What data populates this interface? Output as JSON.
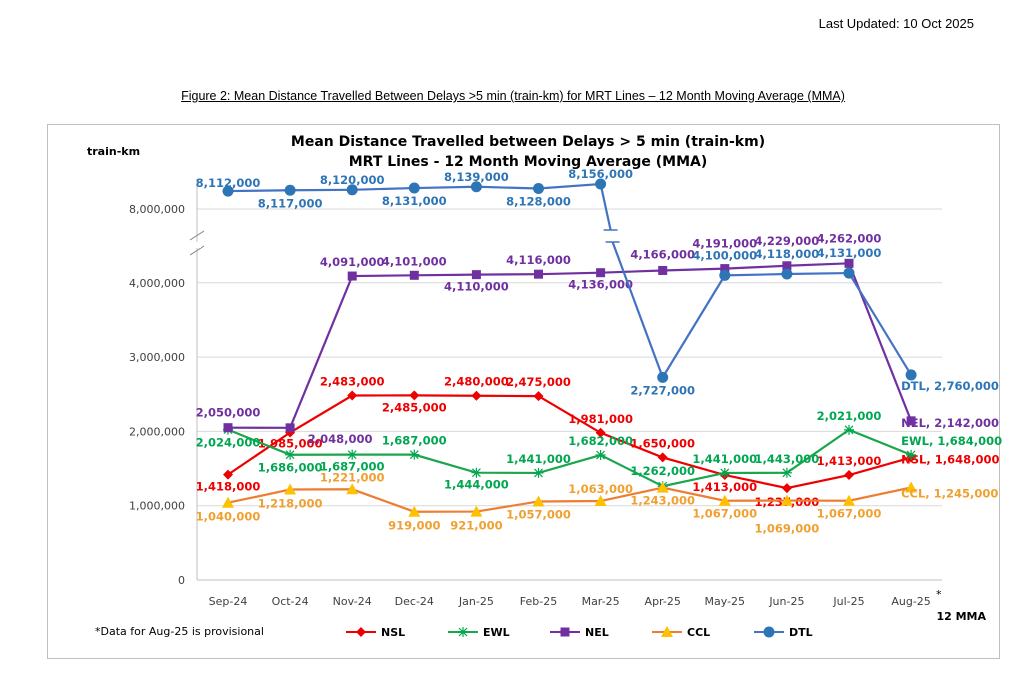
{
  "header": {
    "last_updated": "Last Updated: 10 Oct 2025",
    "figure_caption": "Figure 2: Mean Distance Travelled Between Delays >5 min (train-km) for MRT Lines – 12 Month Moving Average (MMA)"
  },
  "chart_data": {
    "type": "line",
    "title": "Mean Distance Travelled between Delays > 5 min (train-km)",
    "subtitle": "MRT Lines - 12 Month Moving Average (MMA)",
    "ylabel": "train-km",
    "xlabel": "12 MMA",
    "footnote": "*Data for Aug-25 is provisional",
    "aug_marker": "*",
    "ylim": [
      0,
      4500000
    ],
    "axis_break": "between 4,500,000 and 7,500,000",
    "yticks": [
      "0",
      "1,000,000",
      "2,000,000",
      "3,000,000",
      "4,000,000",
      "8,000,000"
    ],
    "categories": [
      "Sep-24",
      "Oct-24",
      "Nov-24",
      "Dec-24",
      "Jan-25",
      "Feb-25",
      "Mar-25",
      "Apr-25",
      "May-25",
      "Jun-25",
      "Jul-25",
      "Aug-25"
    ],
    "series": [
      {
        "name": "NSL",
        "color": "#ee0000",
        "line": "#ee0000",
        "marker": "diamond",
        "values": [
          1418000,
          1985000,
          2483000,
          2485000,
          2480000,
          2475000,
          1981000,
          1650000,
          1413000,
          1237000,
          1413000,
          1648000
        ]
      },
      {
        "name": "EWL",
        "color": "#00a650",
        "line": "#1aa64a",
        "marker": "asterisk",
        "values": [
          2024000,
          1686000,
          1687000,
          1687000,
          1444000,
          1441000,
          1682000,
          1262000,
          1441000,
          1443000,
          2021000,
          1684000
        ]
      },
      {
        "name": "NEL",
        "color": "#7030a0",
        "line": "#7030a0",
        "marker": "square",
        "values": [
          2050000,
          2048000,
          4091000,
          4101000,
          4110000,
          4116000,
          4136000,
          4166000,
          4191000,
          4229000,
          4262000,
          2142000
        ]
      },
      {
        "name": "CCL",
        "color": "#f0a030",
        "line": "#ed7d31",
        "marker": "triangle",
        "values": [
          1040000,
          1218000,
          1221000,
          919000,
          921000,
          1057000,
          1063000,
          1243000,
          1067000,
          1069000,
          1067000,
          1245000
        ]
      },
      {
        "name": "DTL",
        "color": "#2e75b6",
        "line": "#4472c4",
        "marker": "circle",
        "values": [
          8112000,
          8117000,
          8120000,
          8131000,
          8139000,
          8128000,
          8156000,
          2727000,
          4100000,
          4118000,
          4131000,
          2760000
        ]
      }
    ],
    "legend": "bottom"
  }
}
